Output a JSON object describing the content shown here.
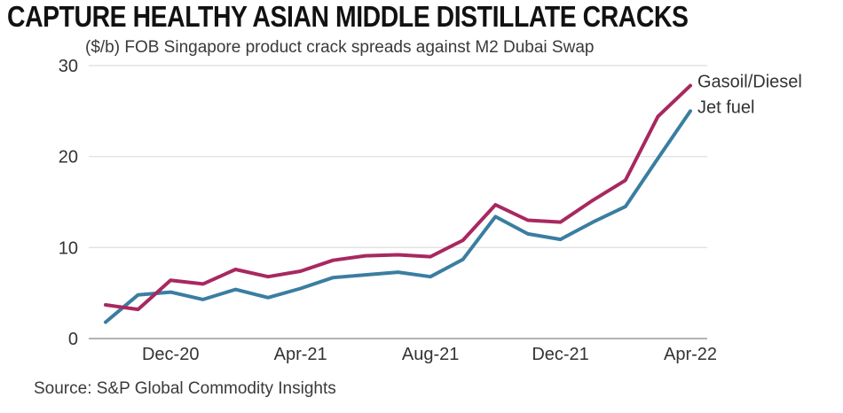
{
  "title": "CAPTURE HEALTHY ASIAN MIDDLE DISTILLATE CRACKS",
  "subtitle": "($/b) FOB Singapore product crack spreads against M2 Dubai Swap",
  "source": "Source: S&P Global Commodity Insights",
  "chart_data": {
    "type": "line",
    "x": [
      "Oct-20",
      "Nov-20",
      "Dec-20",
      "Jan-21",
      "Feb-21",
      "Mar-21",
      "Apr-21",
      "May-21",
      "Jun-21",
      "Jul-21",
      "Aug-21",
      "Sep-21",
      "Oct-21",
      "Nov-21",
      "Dec-21",
      "Jan-22",
      "Feb-22",
      "Mar-22",
      "Apr-22"
    ],
    "x_tick_labels": [
      "Dec-20",
      "Apr-21",
      "Aug-21",
      "Dec-21",
      "Apr-22"
    ],
    "x_tick_positions": [
      "Dec-20",
      "Apr-21",
      "Aug-21",
      "Dec-21",
      "Apr-22"
    ],
    "ylim": [
      0,
      30
    ],
    "yticks": [
      0,
      10,
      20,
      30
    ],
    "grid": true,
    "xlabel": "",
    "ylabel": "",
    "series": [
      {
        "name": "Gasoil/Diesel",
        "color": "#a8285f",
        "values": [
          3.7,
          3.2,
          6.4,
          6.0,
          7.6,
          6.8,
          7.4,
          8.6,
          9.1,
          9.2,
          9.0,
          10.8,
          14.7,
          13.0,
          12.8,
          15.2,
          17.4,
          24.4,
          27.8
        ]
      },
      {
        "name": "Jet fuel",
        "color": "#3a7ea1",
        "values": [
          1.8,
          4.8,
          5.1,
          4.3,
          5.4,
          4.5,
          5.5,
          6.7,
          7.0,
          7.3,
          6.8,
          8.7,
          13.4,
          11.5,
          10.9,
          12.8,
          14.5,
          19.8,
          25.0
        ]
      }
    ]
  }
}
